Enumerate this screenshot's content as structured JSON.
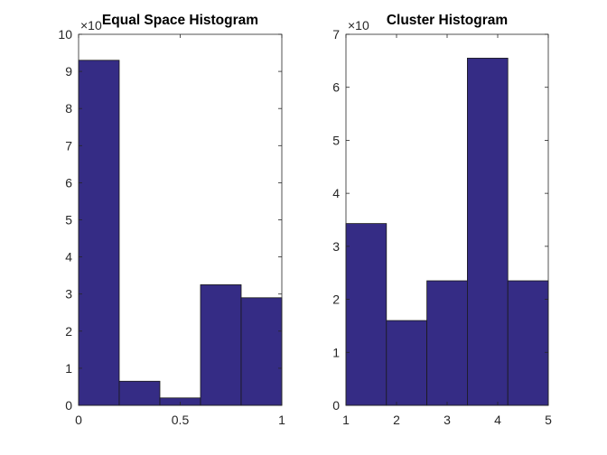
{
  "chart_data": [
    {
      "type": "bar",
      "title": "Equal Space Histogram",
      "bin_edges": [
        0,
        0.2,
        0.4,
        0.6,
        0.8,
        1.0
      ],
      "values": [
        9.3,
        0.65,
        0.2,
        3.25,
        2.9
      ],
      "xlim": [
        0,
        1
      ],
      "ylim": [
        0,
        10
      ],
      "xticks": [
        0,
        0.5,
        1
      ],
      "xtick_labels": [
        "0",
        "0.5",
        "1"
      ],
      "yticks": [
        0,
        1,
        2,
        3,
        4,
        5,
        6,
        7,
        8,
        9,
        10
      ],
      "ytick_labels": [
        "0",
        "1",
        "2",
        "3",
        "4",
        "5",
        "6",
        "7",
        "8",
        "9",
        "10"
      ],
      "y_exponent_label": "×10",
      "bar_color": "#352C85",
      "grid": false
    },
    {
      "type": "bar",
      "title": "Cluster Histogram",
      "bin_edges": [
        1,
        1.8,
        2.6,
        3.4,
        4.2,
        5
      ],
      "values": [
        3.43,
        1.6,
        2.35,
        6.55,
        2.35
      ],
      "xlim": [
        1,
        5
      ],
      "ylim": [
        0,
        7
      ],
      "xticks": [
        1,
        2,
        3,
        4,
        5
      ],
      "xtick_labels": [
        "1",
        "2",
        "3",
        "4",
        "5"
      ],
      "yticks": [
        0,
        1,
        2,
        3,
        4,
        5,
        6,
        7
      ],
      "ytick_labels": [
        "0",
        "1",
        "2",
        "3",
        "4",
        "5",
        "6",
        "7"
      ],
      "y_exponent_label": "×10",
      "bar_color": "#352C85",
      "grid": false
    }
  ]
}
